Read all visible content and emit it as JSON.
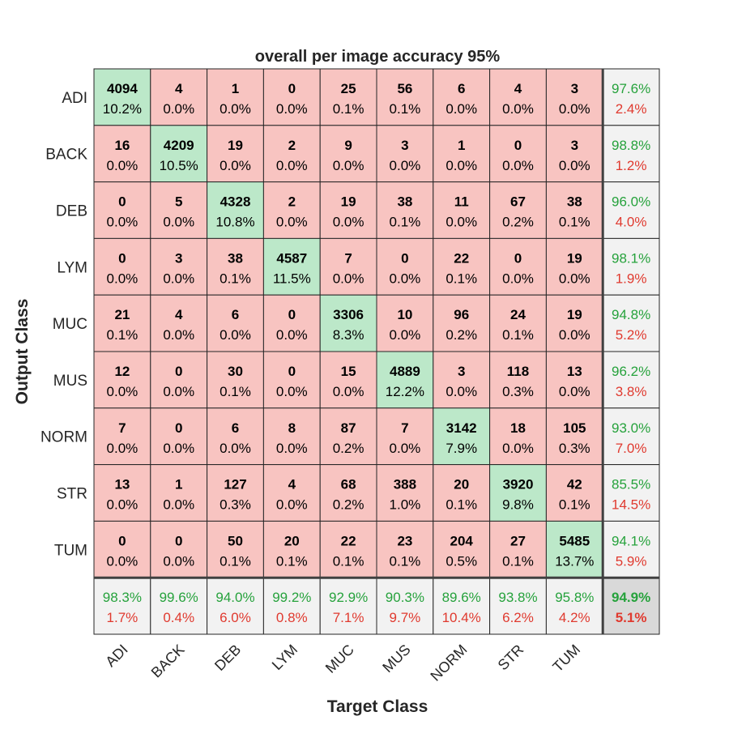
{
  "chart_data": {
    "type": "heatmap",
    "title": "overall per image accuracy 95%",
    "xlabel": "Target Class",
    "ylabel": "Output Class",
    "row_labels": [
      "ADI",
      "BACK",
      "DEB",
      "LYM",
      "MUC",
      "MUS",
      "NORM",
      "STR",
      "TUM"
    ],
    "col_labels": [
      "ADI",
      "BACK",
      "DEB",
      "LYM",
      "MUC",
      "MUS",
      "NORM",
      "STR",
      "TUM"
    ],
    "counts": [
      [
        4094,
        4,
        1,
        0,
        25,
        56,
        6,
        4,
        3
      ],
      [
        16,
        4209,
        19,
        2,
        9,
        3,
        1,
        0,
        3
      ],
      [
        0,
        5,
        4328,
        2,
        19,
        38,
        11,
        67,
        38
      ],
      [
        0,
        3,
        38,
        4587,
        7,
        0,
        22,
        0,
        19
      ],
      [
        21,
        4,
        6,
        0,
        3306,
        10,
        96,
        24,
        19
      ],
      [
        12,
        0,
        30,
        0,
        15,
        4889,
        3,
        118,
        13
      ],
      [
        7,
        0,
        6,
        8,
        87,
        7,
        3142,
        18,
        105
      ],
      [
        13,
        1,
        127,
        4,
        68,
        388,
        20,
        3920,
        42
      ],
      [
        0,
        0,
        50,
        20,
        22,
        23,
        204,
        27,
        5485
      ]
    ],
    "percentages": [
      [
        "10.2%",
        "0.0%",
        "0.0%",
        "0.0%",
        "0.1%",
        "0.1%",
        "0.0%",
        "0.0%",
        "0.0%"
      ],
      [
        "0.0%",
        "10.5%",
        "0.0%",
        "0.0%",
        "0.0%",
        "0.0%",
        "0.0%",
        "0.0%",
        "0.0%"
      ],
      [
        "0.0%",
        "0.0%",
        "10.8%",
        "0.0%",
        "0.0%",
        "0.1%",
        "0.0%",
        "0.2%",
        "0.1%"
      ],
      [
        "0.0%",
        "0.0%",
        "0.1%",
        "11.5%",
        "0.0%",
        "0.0%",
        "0.1%",
        "0.0%",
        "0.0%"
      ],
      [
        "0.1%",
        "0.0%",
        "0.0%",
        "0.0%",
        "8.3%",
        "0.0%",
        "0.2%",
        "0.1%",
        "0.0%"
      ],
      [
        "0.0%",
        "0.0%",
        "0.1%",
        "0.0%",
        "0.0%",
        "12.2%",
        "0.0%",
        "0.3%",
        "0.0%"
      ],
      [
        "0.0%",
        "0.0%",
        "0.0%",
        "0.0%",
        "0.2%",
        "0.0%",
        "7.9%",
        "0.0%",
        "0.3%"
      ],
      [
        "0.0%",
        "0.0%",
        "0.3%",
        "0.0%",
        "0.2%",
        "1.0%",
        "0.1%",
        "9.8%",
        "0.1%"
      ],
      [
        "0.0%",
        "0.0%",
        "0.1%",
        "0.1%",
        "0.1%",
        "0.1%",
        "0.5%",
        "0.1%",
        "13.7%"
      ]
    ],
    "row_summary": [
      [
        "97.6%",
        "2.4%"
      ],
      [
        "98.8%",
        "1.2%"
      ],
      [
        "96.0%",
        "4.0%"
      ],
      [
        "98.1%",
        "1.9%"
      ],
      [
        "94.8%",
        "5.2%"
      ],
      [
        "96.2%",
        "3.8%"
      ],
      [
        "93.0%",
        "7.0%"
      ],
      [
        "85.5%",
        "14.5%"
      ],
      [
        "94.1%",
        "5.9%"
      ]
    ],
    "col_summary": [
      [
        "98.3%",
        "1.7%"
      ],
      [
        "99.6%",
        "0.4%"
      ],
      [
        "94.0%",
        "6.0%"
      ],
      [
        "99.2%",
        "0.8%"
      ],
      [
        "92.9%",
        "7.1%"
      ],
      [
        "90.3%",
        "9.7%"
      ],
      [
        "89.6%",
        "10.4%"
      ],
      [
        "93.8%",
        "6.2%"
      ],
      [
        "95.8%",
        "4.2%"
      ]
    ],
    "overall": [
      "94.9%",
      "5.1%"
    ],
    "colors": {
      "diagonal": "#bce8c9",
      "off_diagonal": "#f8c4c1",
      "summary": "#f2f2f2",
      "overall": "#d9d9d9",
      "correct_text": "#26a23c",
      "error_text": "#e03a2f",
      "grid": "#262626"
    }
  }
}
